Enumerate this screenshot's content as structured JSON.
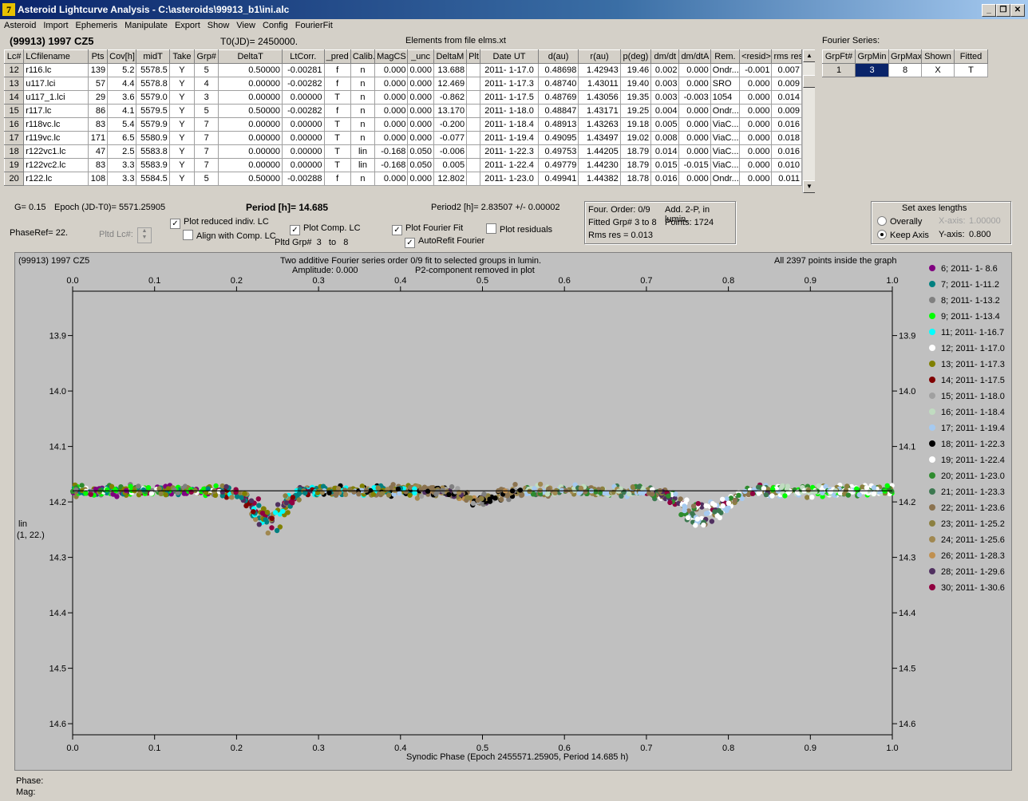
{
  "window": {
    "title": "Asteroid Lightcurve Analysis - C:\\asteroids\\99913_b1\\ini.alc",
    "icon": "app-logo-icon",
    "btn_min": "_",
    "btn_restore": "❐",
    "btn_close": "✕"
  },
  "menu": [
    "Asteroid",
    "Import",
    "Ephemeris",
    "Manipulate",
    "Export",
    "Show",
    "View",
    "Config",
    "FourierFit"
  ],
  "header": {
    "asteroid": "(99913) 1997 CZ5",
    "t0": "T0(JD)= 2450000.",
    "elements": "Elements from file elms.xt",
    "fourier_series_label": "Fourier Series:"
  },
  "lc_table": {
    "columns": [
      "Lc#",
      "LCfilename",
      "Pts",
      "Cov[h]",
      "midT",
      "Take",
      "Grp#",
      "DeltaT",
      "LtCorr.",
      "_pred",
      "Calib.",
      "MagCS",
      "_unc",
      "DeltaM",
      "Plt",
      "Date UT",
      "d(au)",
      "r(au)",
      "p(deg)",
      "dm/dt",
      "dm/dtA",
      "Rem.",
      "<resid>",
      "rms res"
    ],
    "rows": [
      [
        "12",
        "r116.lc",
        "139",
        "5.2",
        "5578.5",
        "Y",
        "5",
        "0.50000",
        "-0.00281",
        "f",
        "n",
        "0.000",
        "0.000",
        "13.688",
        "",
        "2011- 1-17.0",
        "0.48698",
        "1.42943",
        "19.46",
        "0.002",
        "0.000",
        "Ondr...",
        "-0.001",
        "0.007"
      ],
      [
        "13",
        "u117.lci",
        "57",
        "4.4",
        "5578.8",
        "Y",
        "4",
        "0.00000",
        "-0.00282",
        "f",
        "n",
        "0.000",
        "0.000",
        "12.469",
        "",
        "2011- 1-17.3",
        "0.48740",
        "1.43011",
        "19.40",
        "0.003",
        "0.000",
        "SRO",
        "0.000",
        "0.009"
      ],
      [
        "14",
        "u117_1.lci",
        "29",
        "3.6",
        "5579.0",
        "Y",
        "3",
        "0.00000",
        "0.00000",
        "T",
        "n",
        "0.000",
        "0.000",
        "-0.862",
        "",
        "2011- 1-17.5",
        "0.48769",
        "1.43056",
        "19.35",
        "0.003",
        "-0.003",
        "1054",
        "0.000",
        "0.014"
      ],
      [
        "15",
        "r117.lc",
        "86",
        "4.1",
        "5579.5",
        "Y",
        "5",
        "0.50000",
        "-0.00282",
        "f",
        "n",
        "0.000",
        "0.000",
        "13.170",
        "",
        "2011- 1-18.0",
        "0.48847",
        "1.43171",
        "19.25",
        "0.004",
        "0.000",
        "Ondr...",
        "0.000",
        "0.009"
      ],
      [
        "16",
        "r118vc.lc",
        "83",
        "5.4",
        "5579.9",
        "Y",
        "7",
        "0.00000",
        "0.00000",
        "T",
        "n",
        "0.000",
        "0.000",
        "-0.200",
        "",
        "2011- 1-18.4",
        "0.48913",
        "1.43263",
        "19.18",
        "0.005",
        "0.000",
        "ViaC...",
        "0.000",
        "0.016"
      ],
      [
        "17",
        "r119vc.lc",
        "171",
        "6.5",
        "5580.9",
        "Y",
        "7",
        "0.00000",
        "0.00000",
        "T",
        "n",
        "0.000",
        "0.000",
        "-0.077",
        "",
        "2011- 1-19.4",
        "0.49095",
        "1.43497",
        "19.02",
        "0.008",
        "0.000",
        "ViaC...",
        "0.000",
        "0.018"
      ],
      [
        "18",
        "r122vc1.lc",
        "47",
        "2.5",
        "5583.8",
        "Y",
        "7",
        "0.00000",
        "0.00000",
        "T",
        "lin",
        "-0.168",
        "0.050",
        "-0.006",
        "",
        "2011- 1-22.3",
        "0.49753",
        "1.44205",
        "18.79",
        "0.014",
        "0.000",
        "ViaC...",
        "0.000",
        "0.016"
      ],
      [
        "19",
        "r122vc2.lc",
        "83",
        "3.3",
        "5583.9",
        "Y",
        "7",
        "0.00000",
        "0.00000",
        "T",
        "lin",
        "-0.168",
        "0.050",
        "0.005",
        "",
        "2011- 1-22.4",
        "0.49779",
        "1.44230",
        "18.79",
        "0.015",
        "-0.015",
        "ViaC...",
        "0.000",
        "0.010"
      ],
      [
        "20",
        "r122.lc",
        "108",
        "3.3",
        "5584.5",
        "Y",
        "5",
        "0.50000",
        "-0.00288",
        "f",
        "n",
        "0.000",
        "0.000",
        "12.802",
        "",
        "2011- 1-23.0",
        "0.49941",
        "1.44382",
        "18.78",
        "0.016",
        "0.000",
        "Ondr...",
        "0.000",
        "0.011"
      ]
    ]
  },
  "fourier_table": {
    "columns": [
      "GrpFt#",
      "GrpMin",
      "GrpMax",
      "Shown",
      "Fitted"
    ],
    "rows": [
      [
        "1",
        "3",
        "8",
        "X",
        "T"
      ]
    ]
  },
  "controls": {
    "g_value": "G= 0.15",
    "epoch": "Epoch (JD-T0)= 5571.25905",
    "period": "Period [h]= 14.685",
    "period2": "Period2 [h]= 2.83507 +/- 0.00002",
    "phase_ref": "PhaseRef= 22.",
    "pltd_lc_label": "Pltd Lc#:",
    "pltd_grp_label": "Pltd Grp#",
    "pltd_grp_from": "3",
    "pltd_grp_to_label": "to",
    "pltd_grp_to": "8",
    "plot_reduced": "Plot reduced indiv. LC",
    "align_comp": "Align with Comp. LC",
    "plot_comp": "Plot Comp. LC",
    "plot_fourier": "Plot Fourier Fit",
    "autorefit": "AutoRefit Fourier",
    "plot_residuals": "Plot residuals",
    "check_mark": "✓"
  },
  "fit_info": {
    "four_order": "Four. Order:  0/9",
    "add2p": "Add. 2-P, in lumin.",
    "fitted_grp": "Fitted Grp# 3 to 8",
    "points": "Points: 1724",
    "rms": "Rms res     = 0.013"
  },
  "axes_box": {
    "title": "Set axes lengths",
    "overally": "Overally",
    "keep_axis": "Keep Axis",
    "x_axis_label": "X-axis:",
    "x_axis_value": "1.00000",
    "y_axis_label": "Y-axis:",
    "y_axis_value": "0.800"
  },
  "status": {
    "phase": "Phase:",
    "mag": "Mag:"
  },
  "chart_data": {
    "type": "scatter",
    "object_label": "(99913) 1997 CZ5",
    "title": "Two additive Fourier series order 0/9 fit to selected groups in lumin.",
    "subtitle_amp": "Amplitude: 0.000",
    "subtitle_p2": "P2-component removed in plot",
    "note": "All 2397 points inside the graph",
    "xlabel": "Synodic Phase (Epoch 2455571.25905, Period 14.685 h)",
    "ylabel": "lin",
    "ylabel2": "(1, 22.)",
    "xlim": [
      0.0,
      1.0
    ],
    "ylim": [
      13.82,
      14.62
    ],
    "y_inverted": true,
    "x_ticks": [
      "0.0",
      "0.1",
      "0.2",
      "0.3",
      "0.4",
      "0.5",
      "0.6",
      "0.7",
      "0.8",
      "0.9",
      "1.0"
    ],
    "y_ticks": [
      "13.9",
      "14.0",
      "14.1",
      "14.2",
      "14.3",
      "14.4",
      "14.5",
      "14.6"
    ],
    "fit_line_y": 14.18,
    "series": [
      {
        "name": "6; 2011- 1- 8.6",
        "color": "#800080"
      },
      {
        "name": "7; 2011- 1-11.2",
        "color": "#008080"
      },
      {
        "name": "8; 2011- 1-13.2",
        "color": "#808080"
      },
      {
        "name": "9; 2011- 1-13.4",
        "color": "#00ff00"
      },
      {
        "name": "11; 2011- 1-16.7",
        "color": "#00ffff"
      },
      {
        "name": "12; 2011- 1-17.0",
        "color": "#ffffff"
      },
      {
        "name": "13; 2011- 1-17.3",
        "color": "#808000"
      },
      {
        "name": "14; 2011- 1-17.5",
        "color": "#800000"
      },
      {
        "name": "15; 2011- 1-18.0",
        "color": "#a0a0a0"
      },
      {
        "name": "16; 2011- 1-18.4",
        "color": "#c0dcc0"
      },
      {
        "name": "17; 2011- 1-19.4",
        "color": "#a6caf0"
      },
      {
        "name": "18; 2011- 1-22.3",
        "color": "#000000"
      },
      {
        "name": "19; 2011- 1-22.4",
        "color": "#ffffff"
      },
      {
        "name": "20; 2011- 1-23.0",
        "color": "#2e8b2e"
      },
      {
        "name": "21; 2011- 1-23.3",
        "color": "#3c7850"
      },
      {
        "name": "22; 2011- 1-23.6",
        "color": "#8b7350"
      },
      {
        "name": "23; 2011- 1-25.2",
        "color": "#8c8040"
      },
      {
        "name": "24; 2011- 1-25.6",
        "color": "#a08850"
      },
      {
        "name": "26; 2011- 1-28.3",
        "color": "#c09050"
      },
      {
        "name": "28; 2011- 1-29.6",
        "color": "#503060"
      },
      {
        "name": "30; 2011- 1-30.6",
        "color": "#900040"
      }
    ]
  }
}
